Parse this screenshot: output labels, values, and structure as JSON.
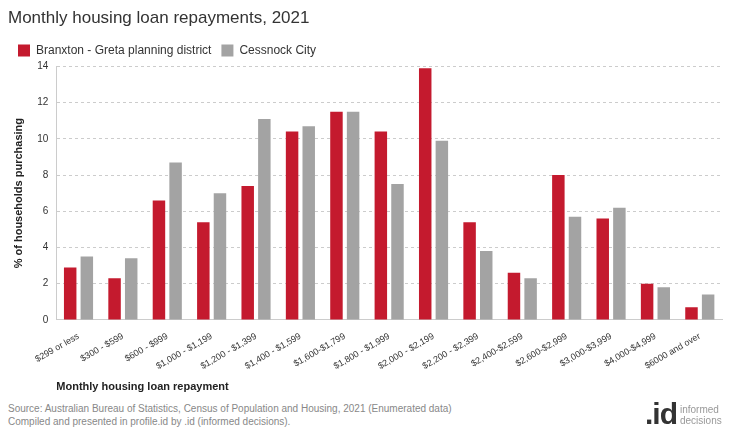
{
  "chart_data": {
    "type": "bar",
    "title": "Monthly housing loan repayments, 2021",
    "x_label": "Monthly housing loan repayment",
    "y_label": "% of households purchasing",
    "categories": [
      "$299 or less",
      "$300 - $599",
      "$600 - $999",
      "$1,000 - $1,199",
      "$1,200 - $1,399",
      "$1,400 - $1,599",
      "$1,600-$1,799",
      "$1,800 - $1,999",
      "$2,000 - $2,199",
      "$2,200 - $2,399",
      "$2,400-$2,599",
      "$2,600-$2,999",
      "$3,000-$3,999",
      "$4,000-$4,999",
      "$6000 and over"
    ],
    "series": [
      {
        "name": "Branxton - Greta planning district",
        "color": "#c41a2e",
        "values": [
          2.9,
          2.3,
          6.6,
          5.4,
          7.4,
          10.4,
          11.5,
          10.4,
          13.9,
          5.4,
          2.6,
          8.0,
          5.6,
          2.0,
          0.7
        ]
      },
      {
        "name": "Cessnock City",
        "color": "#a3a3a3",
        "values": [
          3.5,
          3.4,
          8.7,
          7.0,
          11.1,
          10.7,
          11.5,
          7.5,
          9.9,
          3.8,
          2.3,
          5.7,
          6.2,
          1.8,
          1.4
        ]
      }
    ],
    "ylim": [
      0,
      14
    ],
    "yticks": [
      0,
      2,
      4,
      6,
      8,
      10,
      12,
      14
    ],
    "grid": true,
    "legend": "top-left",
    "source": [
      "Source: Australian Bureau of Statistics, Census of Population and Housing, 2021 (Enumerated data)",
      "Compiled and presented in profile.id by .id (informed decisions)."
    ],
    "logo": {
      "mark": ".id",
      "text": "informed decisions"
    }
  }
}
